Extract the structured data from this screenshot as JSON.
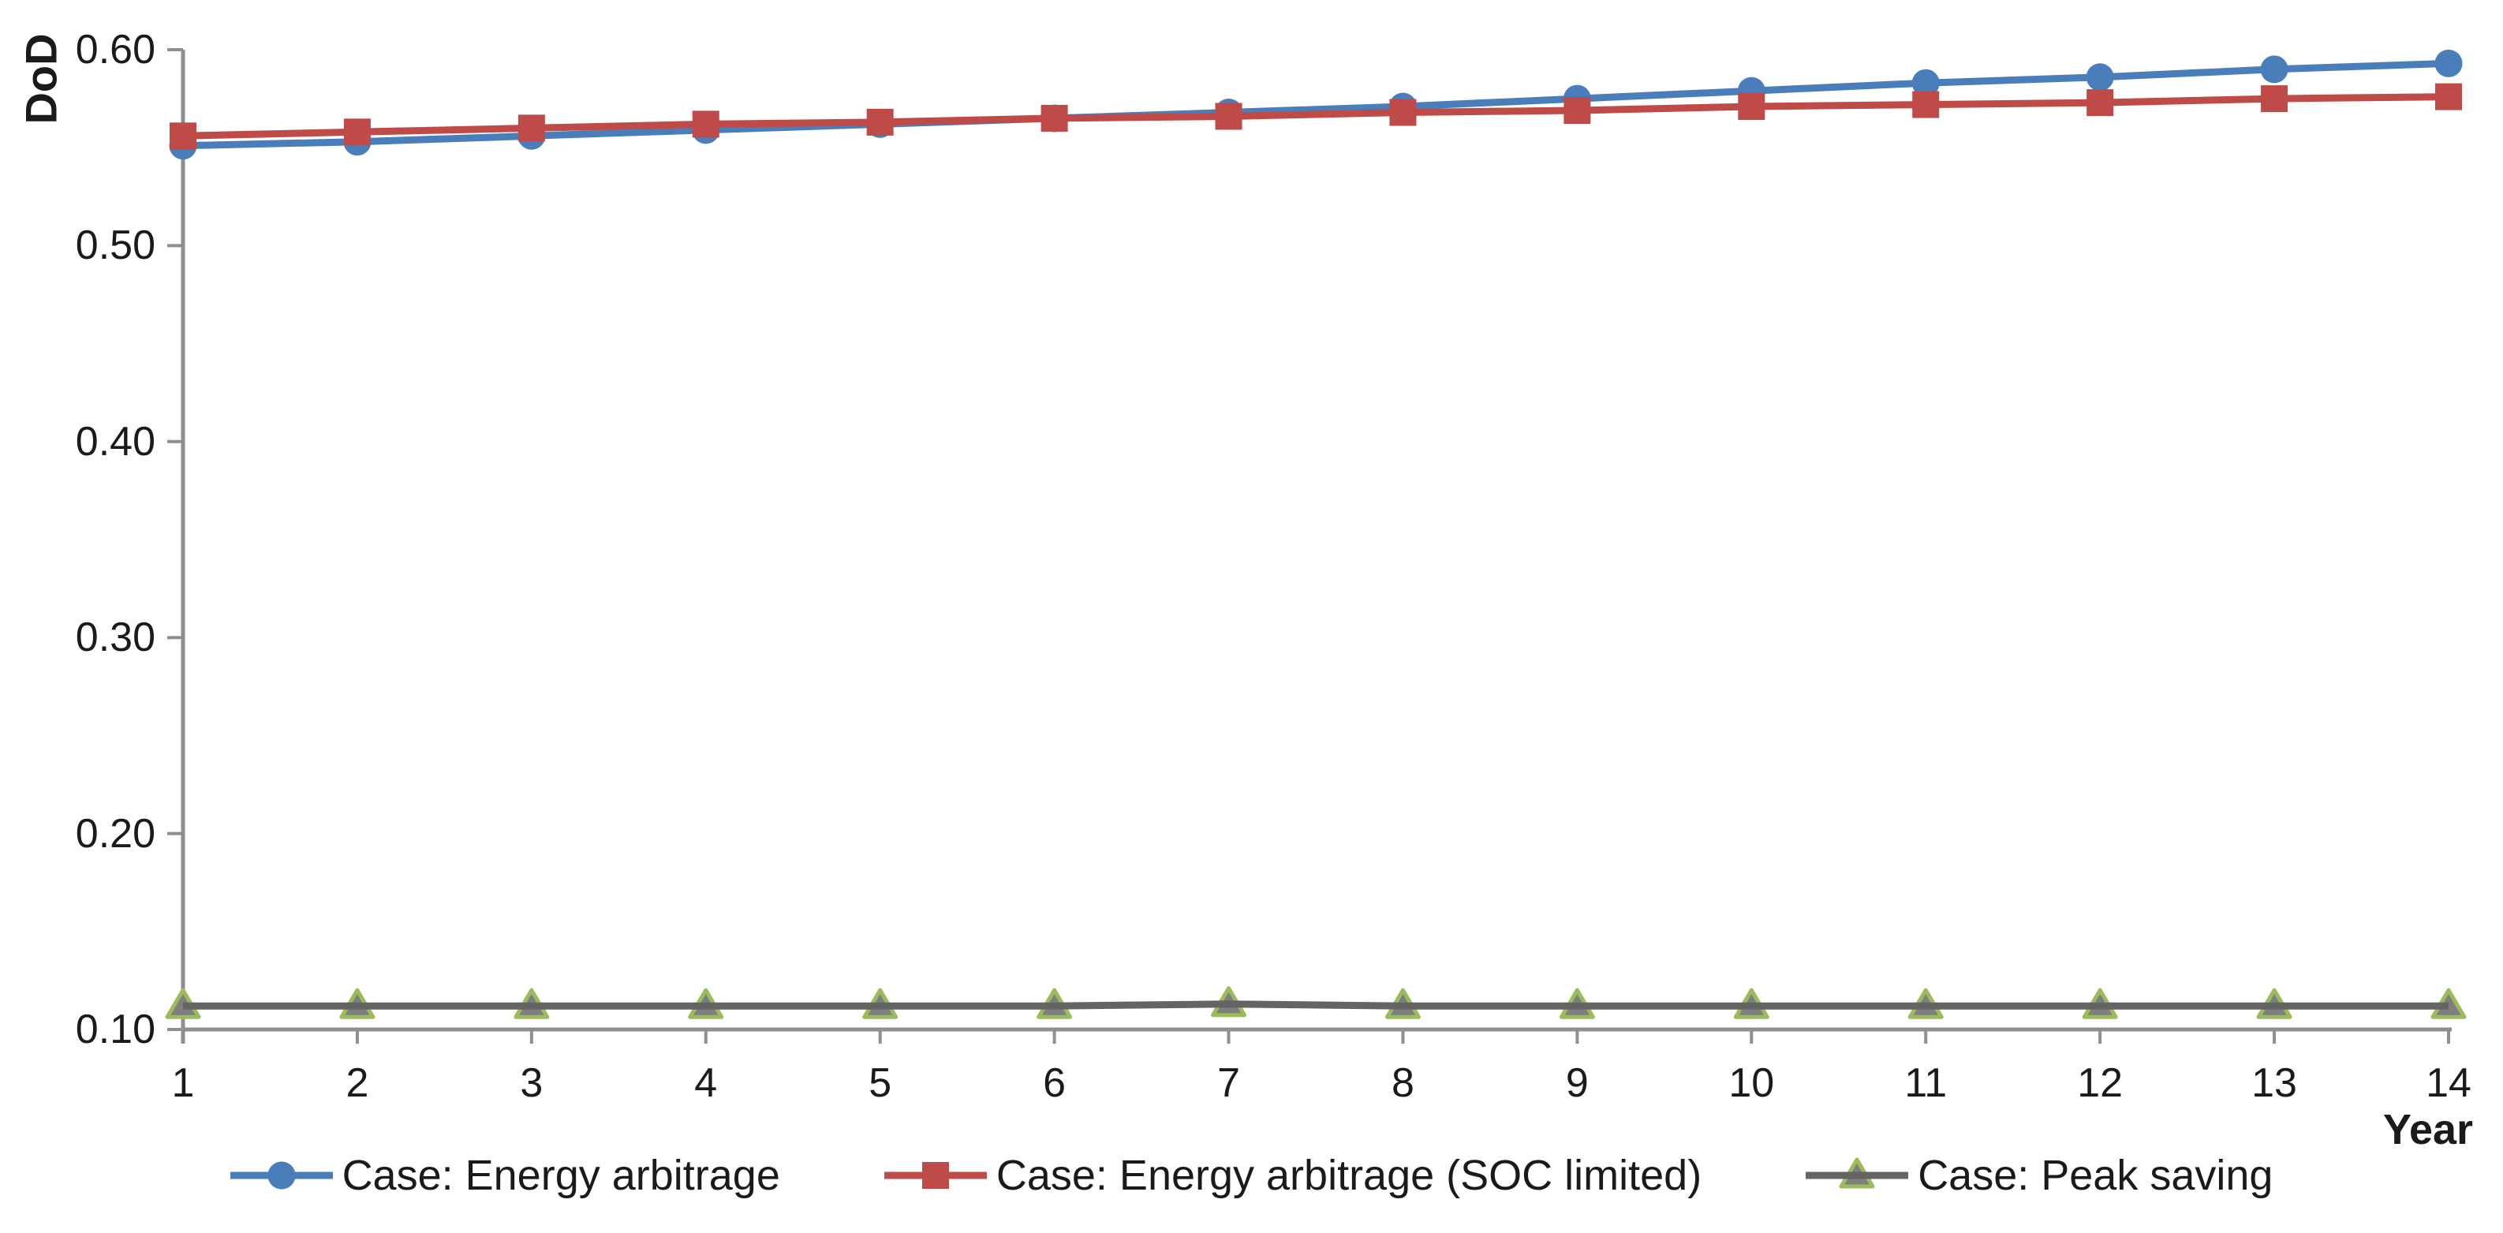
{
  "chart_data": {
    "type": "line",
    "title": "",
    "xlabel": "Year",
    "ylabel": "DoD",
    "x": [
      1,
      2,
      3,
      4,
      5,
      6,
      7,
      8,
      9,
      10,
      11,
      12,
      13,
      14
    ],
    "xlim": [
      1,
      14
    ],
    "ylim": [
      0.1,
      0.6
    ],
    "ytick_labels": [
      "0.60",
      "0.50",
      "0.40",
      "0.30",
      "0.20",
      "0.10"
    ],
    "grid": false,
    "legend_position": "bottom",
    "axis_color": "#8F8F8F",
    "text_color": "#1A1A1A",
    "series": [
      {
        "name": "Case: Energy arbitrage",
        "color": "#4A7EBB",
        "marker": "circle",
        "values": [
          0.551,
          0.553,
          0.556,
          0.559,
          0.562,
          0.565,
          0.568,
          0.571,
          0.575,
          0.579,
          0.583,
          0.586,
          0.59,
          0.593
        ]
      },
      {
        "name": "Case: Energy arbitrage (SOC limited)",
        "color": "#BE4B48",
        "marker": "square",
        "values": [
          0.556,
          0.558,
          0.56,
          0.562,
          0.563,
          0.565,
          0.566,
          0.568,
          0.569,
          0.571,
          0.572,
          0.573,
          0.575,
          0.576
        ]
      },
      {
        "name": "Case: Peak saving",
        "color": "#646464",
        "marker": "triangle",
        "marker_fill": "#7F7F7F",
        "marker_stroke": "#9CBC5C",
        "values": [
          0.112,
          0.112,
          0.112,
          0.112,
          0.112,
          0.112,
          0.113,
          0.112,
          0.112,
          0.112,
          0.112,
          0.112,
          0.112,
          0.112
        ]
      }
    ]
  }
}
